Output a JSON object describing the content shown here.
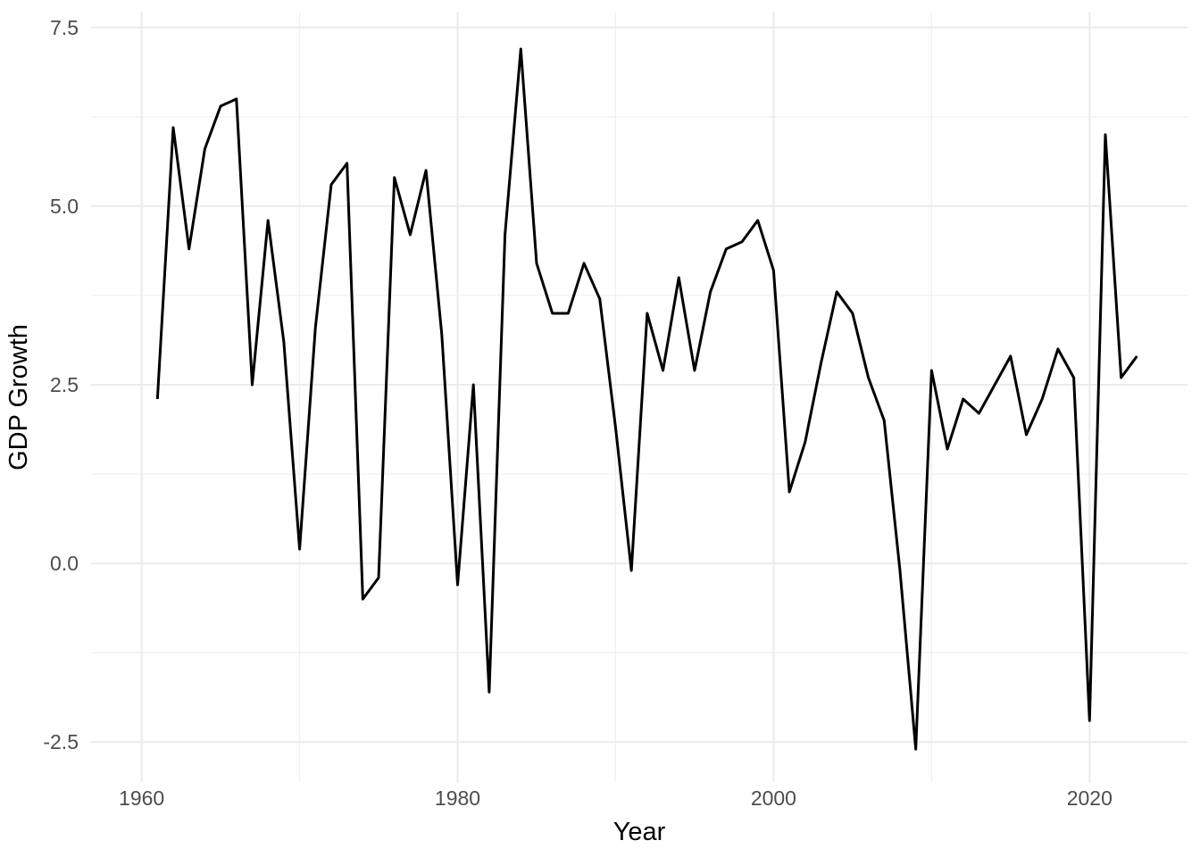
{
  "chart_data": {
    "type": "line",
    "title": "",
    "xlabel": "Year",
    "ylabel": "GDP Growth",
    "series_name": "GDP Growth",
    "x": [
      1961,
      1962,
      1963,
      1964,
      1965,
      1966,
      1967,
      1968,
      1969,
      1970,
      1971,
      1972,
      1973,
      1974,
      1975,
      1976,
      1977,
      1978,
      1979,
      1980,
      1981,
      1982,
      1983,
      1984,
      1985,
      1986,
      1987,
      1988,
      1989,
      1990,
      1991,
      1992,
      1993,
      1994,
      1995,
      1996,
      1997,
      1998,
      1999,
      2000,
      2001,
      2002,
      2003,
      2004,
      2005,
      2006,
      2007,
      2008,
      2009,
      2010,
      2011,
      2012,
      2013,
      2014,
      2015,
      2016,
      2017,
      2018,
      2019,
      2020,
      2021,
      2022,
      2023
    ],
    "values": [
      2.3,
      6.1,
      4.4,
      5.8,
      6.4,
      6.5,
      2.5,
      4.8,
      3.1,
      0.2,
      3.3,
      5.3,
      5.6,
      -0.5,
      -0.2,
      5.4,
      4.6,
      5.5,
      3.2,
      -0.3,
      2.5,
      -1.8,
      4.6,
      7.2,
      4.2,
      3.5,
      3.5,
      4.2,
      3.7,
      1.9,
      -0.1,
      3.5,
      2.7,
      4.0,
      2.7,
      3.8,
      4.4,
      4.5,
      4.8,
      4.1,
      1.0,
      1.7,
      2.8,
      3.8,
      3.5,
      2.6,
      2.0,
      -0.1,
      -2.6,
      2.7,
      1.6,
      2.3,
      2.1,
      2.5,
      2.9,
      1.8,
      2.3,
      3.0,
      2.6,
      -2.2,
      6.0,
      2.6,
      2.9
    ],
    "x_tick_labels": [
      "1960",
      "1980",
      "2000",
      "2020"
    ],
    "x_ticks_major": [
      1960,
      1980,
      2000,
      2020
    ],
    "x_ticks_minor": [
      1970,
      1990,
      2010
    ],
    "y_tick_labels": [
      "7.5",
      "5.0",
      "2.5",
      "0.0",
      "-2.5"
    ],
    "y_ticks_major": [
      7.5,
      5.0,
      2.5,
      0.0,
      -2.5
    ],
    "y_ticks_minor": [
      6.25,
      3.75,
      1.25,
      -1.25
    ],
    "xlim": [
      1956.8,
      2026.2
    ],
    "ylim": [
      -3.06,
      7.71
    ],
    "grid": true,
    "legend": "none",
    "colors": {
      "line": "#000000",
      "grid_major": "#EBEBEB",
      "grid_minor": "#EFEFEF",
      "tick_text": "#4D4D4D",
      "axis_title": "#000000",
      "background": "#FFFFFF"
    }
  }
}
